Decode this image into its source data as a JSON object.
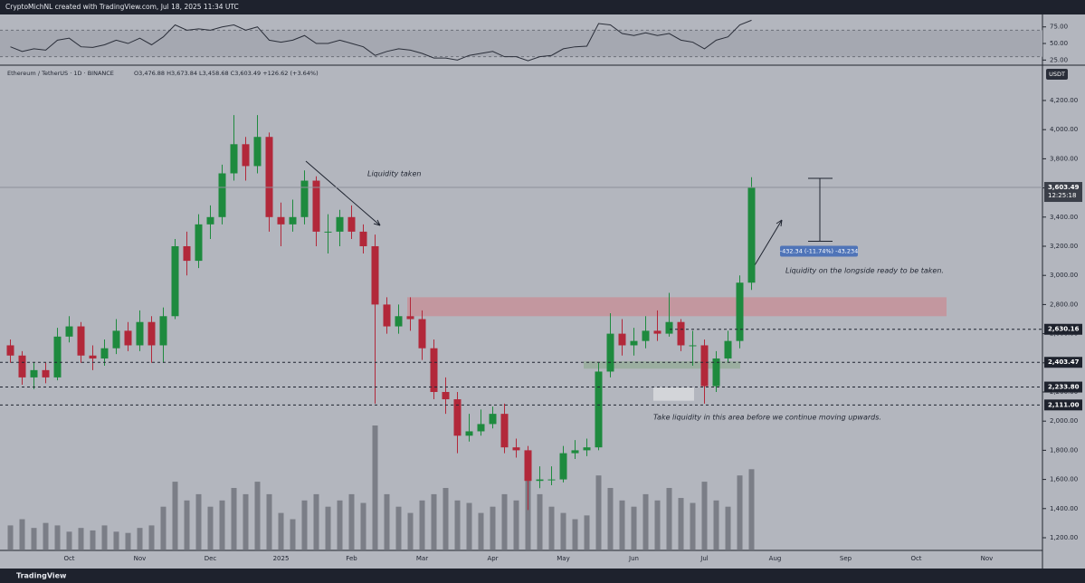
{
  "header": {
    "credit": "CryptoMichNL created with TradingView.com, Jul 18, 2025 11:34 UTC"
  },
  "footer": {
    "brand": "TradingView"
  },
  "chart_data": {
    "type": "candlestick",
    "symbol": "Ethereum / TetherUS · 1D · BINANCE",
    "ohlc_legend": "O3,476.88 H3,673.84 L3,458.68 C3,603.49 +126.62 (+3.64%)",
    "currency": "USDT",
    "categories": [
      null,
      null,
      null,
      null,
      null,
      "Oct",
      null,
      null,
      null,
      null,
      null,
      "Nov",
      null,
      null,
      null,
      null,
      null,
      "Dec",
      null,
      null,
      null,
      null,
      null,
      "2025",
      null,
      null,
      null,
      null,
      null,
      "Feb",
      null,
      null,
      null,
      null,
      null,
      "Mar",
      null,
      null,
      null,
      null,
      null,
      "Apr",
      null,
      null,
      null,
      null,
      null,
      "May",
      null,
      null,
      null,
      null,
      null,
      "Jun",
      null,
      null,
      null,
      null,
      null,
      "Jul",
      null,
      null,
      null,
      null
    ],
    "future_categories": [
      "Aug",
      "Sep",
      "Oct",
      "Nov"
    ],
    "open": [
      2520,
      2450,
      2300,
      2350,
      2300,
      2580,
      2650,
      2450,
      2430,
      2500,
      2620,
      2520,
      2680,
      2520,
      2720,
      3200,
      3100,
      3350,
      3400,
      3700,
      3900,
      3750,
      3950,
      3400,
      3350,
      3400,
      3650,
      3300,
      3300,
      3400,
      3300,
      3200,
      2800,
      2650,
      2720,
      2700,
      2500,
      2200,
      2150,
      1900,
      1930,
      1980,
      2050,
      1820,
      1800,
      1590,
      1600,
      1600,
      1780,
      1800,
      1820,
      2340,
      2600,
      2520,
      2550,
      2620,
      2600,
      2680,
      2520,
      2520,
      2240,
      2430,
      2550,
      2950
    ],
    "high": [
      2560,
      2480,
      2400,
      2400,
      2640,
      2720,
      2680,
      2520,
      2560,
      2700,
      2680,
      2760,
      2720,
      2780,
      3250,
      3300,
      3420,
      3480,
      3760,
      4100,
      3950,
      4100,
      3980,
      3500,
      3520,
      3720,
      3680,
      3420,
      3450,
      3480,
      3350,
      3280,
      2850,
      2800,
      2850,
      2760,
      2560,
      2300,
      2200,
      2050,
      2080,
      2100,
      2120,
      1880,
      1830,
      1690,
      1690,
      1830,
      1870,
      1880,
      2400,
      2740,
      2700,
      2640,
      2720,
      2760,
      2880,
      2700,
      2620,
      2560,
      2480,
      2620,
      3000,
      3673.84
    ],
    "low": [
      2400,
      2250,
      2220,
      2260,
      2280,
      2540,
      2400,
      2350,
      2380,
      2460,
      2480,
      2480,
      2400,
      2400,
      2700,
      3000,
      3050,
      3250,
      3350,
      3650,
      3650,
      3700,
      3300,
      3200,
      3300,
      3350,
      3200,
      3150,
      3200,
      3250,
      3150,
      2120,
      2600,
      2600,
      2620,
      2420,
      2150,
      2050,
      1780,
      1860,
      1900,
      1950,
      1780,
      1750,
      1390,
      1540,
      1560,
      1580,
      1740,
      1760,
      1800,
      2300,
      2450,
      2450,
      2500,
      2550,
      2580,
      2480,
      2380,
      2120,
      2200,
      2400,
      2500,
      2900
    ],
    "close": [
      2450,
      2300,
      2350,
      2300,
      2580,
      2650,
      2450,
      2430,
      2500,
      2620,
      2520,
      2680,
      2520,
      2720,
      3200,
      3100,
      3350,
      3400,
      3700,
      3900,
      3750,
      3950,
      3400,
      3350,
      3400,
      3650,
      3300,
      3300,
      3400,
      3300,
      3200,
      2800,
      2650,
      2720,
      2700,
      2500,
      2200,
      2150,
      1900,
      1930,
      1980,
      2050,
      1820,
      1800,
      1590,
      1600,
      1600,
      1780,
      1800,
      1820,
      2340,
      2600,
      2520,
      2550,
      2620,
      2600,
      2680,
      2520,
      2520,
      2240,
      2430,
      2550,
      2950,
      3603.49
    ],
    "up_color": "#1e8a3e",
    "down_color": "#b2283a",
    "volume": [
      20,
      25,
      18,
      22,
      20,
      15,
      18,
      16,
      20,
      15,
      14,
      18,
      20,
      35,
      55,
      40,
      45,
      35,
      40,
      50,
      45,
      55,
      45,
      30,
      25,
      40,
      45,
      35,
      40,
      45,
      38,
      100,
      45,
      35,
      30,
      40,
      45,
      50,
      40,
      38,
      30,
      35,
      45,
      40,
      70,
      45,
      35,
      30,
      25,
      28,
      60,
      50,
      40,
      35,
      45,
      40,
      50,
      42,
      38,
      55,
      40,
      35,
      60,
      65
    ],
    "volume_lim": [
      0,
      100
    ],
    "volume_color": "#6d7079",
    "ylim": [
      1113,
      4436
    ],
    "yticks": [
      {
        "value": 1200,
        "label": "1,200.00"
      },
      {
        "value": 1400,
        "label": "1,400.00"
      },
      {
        "value": 1600,
        "label": "1,600.00"
      },
      {
        "value": 1800,
        "label": "1,800.00"
      },
      {
        "value": 2000,
        "label": "2,000.00"
      },
      {
        "value": 2200,
        "label": "2,200.00"
      },
      {
        "value": 2400,
        "label": "2,400.00"
      },
      {
        "value": 2600,
        "label": "2,600.00"
      },
      {
        "value": 2800,
        "label": "2,800.00"
      },
      {
        "value": 3000,
        "label": "3,000.00"
      },
      {
        "value": 3200,
        "label": "3,200.00"
      },
      {
        "value": 3400,
        "label": "3,400.00"
      },
      {
        "value": 3600,
        "label": "3,600.00"
      },
      {
        "value": 3800,
        "label": "3,800.00"
      },
      {
        "value": 4000,
        "label": "4,000.00"
      },
      {
        "value": 4200,
        "label": "4,200.00"
      }
    ],
    "last_price": {
      "value": 3603.49,
      "label": "3,603.49",
      "countdown": "12:25:18"
    },
    "levels": [
      {
        "value": 2630.16,
        "label": "2,630.16"
      },
      {
        "value": 2403.47,
        "label": "2,403.47"
      },
      {
        "value": 2233.8,
        "label": "2,233.80"
      },
      {
        "value": 2111,
        "label": "2,111.00"
      }
    ],
    "zones": [
      {
        "low": 2720,
        "high": 2850,
        "color": "#c4939b"
      },
      {
        "low": 2360,
        "high": 2410,
        "color": "#98ad9c"
      },
      {
        "low": 2140,
        "high": 2230,
        "color": "#d6d8dc"
      }
    ],
    "measure": {
      "top": 3666,
      "bottom": 3234,
      "label": "-432.34 (-11.74%) -43,234"
    },
    "annotations": [
      "Liquidity taken",
      "Liquidity on the longside ready to be taken.",
      "Take liquidity in this area before we continue moving upwards."
    ],
    "rsi": {
      "values": [
        45,
        38,
        42,
        40,
        55,
        58,
        45,
        44,
        48,
        55,
        50,
        58,
        48,
        60,
        78,
        70,
        72,
        70,
        75,
        78,
        70,
        75,
        55,
        52,
        55,
        62,
        50,
        50,
        55,
        50,
        45,
        32,
        38,
        42,
        40,
        35,
        28,
        28,
        25,
        32,
        35,
        38,
        30,
        30,
        24,
        30,
        32,
        42,
        45,
        46,
        80,
        78,
        65,
        62,
        66,
        62,
        65,
        55,
        52,
        42,
        55,
        60,
        78,
        85
      ],
      "color": "#2a2e39",
      "ylim": [
        20,
        91
      ],
      "band": [
        30,
        70
      ],
      "yticks": [
        {
          "value": 75,
          "label": "75.00"
        },
        {
          "value": 50,
          "label": "50.00"
        },
        {
          "value": 25,
          "label": "25.00"
        }
      ]
    }
  }
}
